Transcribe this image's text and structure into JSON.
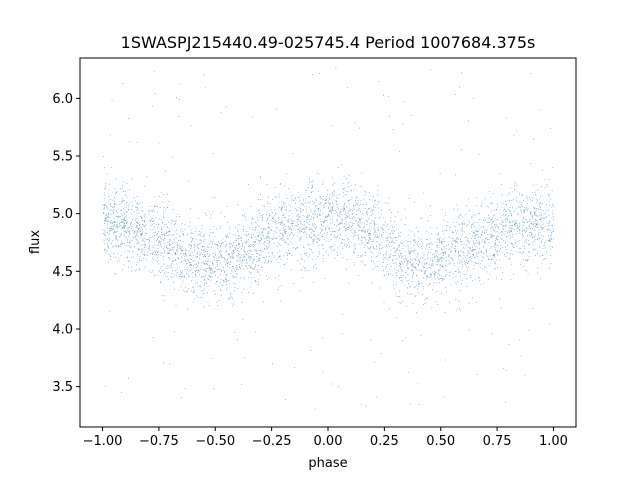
{
  "chart_data": {
    "type": "scatter",
    "title": "1SWASPJ215440.49-025745.4 Period 1007684.375s",
    "xlabel": "phase",
    "ylabel": "flux",
    "xlim": [
      -1.1,
      1.1
    ],
    "ylim": [
      3.15,
      6.35
    ],
    "xticks": [
      -1.0,
      -0.75,
      -0.5,
      -0.25,
      0.0,
      0.25,
      0.5,
      0.75,
      1.0
    ],
    "xtick_labels": [
      "−1.00",
      "−0.75",
      "−0.50",
      "−0.25",
      "0.00",
      "0.25",
      "0.50",
      "0.75",
      "1.00"
    ],
    "yticks": [
      3.5,
      4.0,
      4.5,
      5.0,
      5.5,
      6.0
    ],
    "ytick_labels": [
      "3.5",
      "4.0",
      "4.5",
      "5.0",
      "5.5",
      "6.0"
    ],
    "grid": false,
    "marker_color": "#1f77b4",
    "phase_curve": {
      "x": [
        -1.0,
        -0.9,
        -0.8,
        -0.7,
        -0.6,
        -0.5,
        -0.4,
        -0.3,
        -0.2,
        -0.1,
        0.0,
        0.1,
        0.2,
        0.3,
        0.4,
        0.5,
        0.6,
        0.7,
        0.8,
        0.9,
        1.0
      ],
      "y": [
        4.93,
        4.9,
        4.82,
        4.72,
        4.6,
        4.58,
        4.62,
        4.75,
        4.88,
        4.92,
        4.95,
        4.93,
        4.85,
        4.68,
        4.58,
        4.6,
        4.68,
        4.78,
        4.88,
        4.9,
        4.93
      ]
    },
    "scatter_std": 0.17,
    "n_points": 16000,
    "outlier_range": [
      3.3,
      6.3
    ]
  }
}
